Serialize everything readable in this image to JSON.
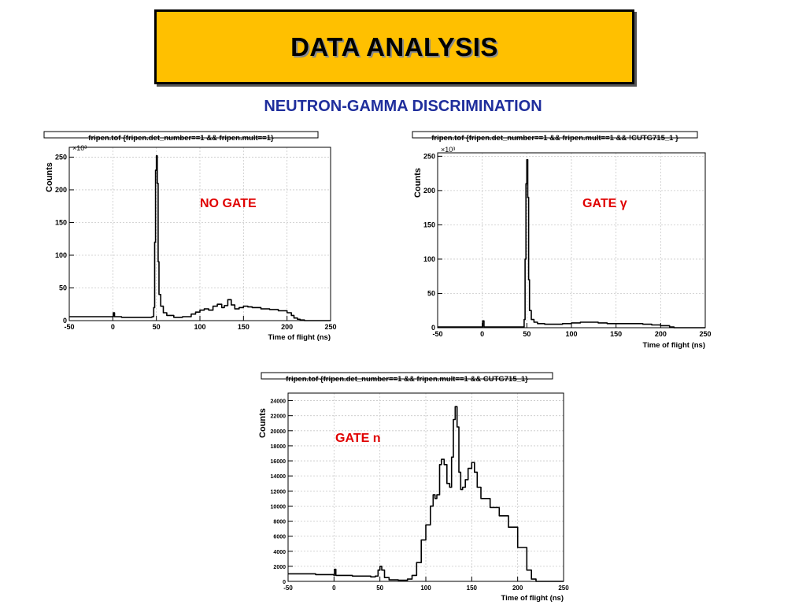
{
  "slide": {
    "title": "DATA ANALYSIS",
    "subtitle": "NEUTRON-GAMMA DISCRIMINATION",
    "colors": {
      "title_bg": "#ffc000",
      "subtitle": "#1f2e9c",
      "annotation": "#e00000",
      "trace": "#000000",
      "grid": "#c8c8c8"
    }
  },
  "chart_data": [
    {
      "type": "line",
      "title": "fripen.tof {fripen.det_number==1 && fripen.mult==1}",
      "annotation": "NO GATE",
      "xlabel": "Time of flight (ns)",
      "ylabel": "Counts",
      "yscale_label": "×10³",
      "xlim": [
        -50,
        250
      ],
      "ylim": [
        0,
        265
      ],
      "xticks": [
        -50,
        0,
        50,
        100,
        150,
        200,
        250
      ],
      "yticks": [
        0,
        50,
        100,
        150,
        200,
        250
      ],
      "grid": true,
      "series": [
        {
          "x": [
            -50,
            -10,
            0,
            0.5,
            1.5,
            2,
            10,
            30,
            45,
            47,
            48,
            49,
            50,
            51,
            52,
            53,
            55,
            58,
            62,
            70,
            80,
            90,
            95,
            100,
            105,
            110,
            115,
            120,
            125,
            128,
            132,
            136,
            140,
            145,
            150,
            155,
            160,
            170,
            180,
            190,
            200,
            205,
            208,
            212,
            215,
            220,
            230,
            250
          ],
          "y": [
            6,
            6,
            6,
            12,
            12,
            6,
            5,
            5,
            6,
            20,
            120,
            230,
            252,
            210,
            90,
            40,
            22,
            12,
            8,
            5,
            6,
            10,
            13,
            16,
            18,
            16,
            22,
            25,
            20,
            23,
            32,
            24,
            18,
            20,
            22,
            21,
            20,
            18,
            17,
            15,
            12,
            8,
            4,
            2,
            1,
            0,
            0,
            0
          ]
        }
      ]
    },
    {
      "type": "line",
      "title": "fripen.tof {fripen.det_number==1 && fripen.mult==1 && !CUTG715_1 }",
      "annotation": "GATE γ",
      "xlabel": "Time of flight (ns)",
      "ylabel": "Counts",
      "yscale_label": "×10³",
      "xlim": [
        -50,
        250
      ],
      "ylim": [
        0,
        255
      ],
      "xticks": [
        -50,
        0,
        50,
        100,
        150,
        200,
        250
      ],
      "yticks": [
        0,
        50,
        100,
        150,
        200,
        250
      ],
      "grid": true,
      "series": [
        {
          "x": [
            -50,
            -10,
            0,
            0.5,
            1.5,
            2,
            10,
            30,
            45,
            47,
            48,
            49,
            50,
            51,
            52,
            53,
            55,
            58,
            62,
            70,
            80,
            90,
            100,
            110,
            120,
            130,
            140,
            150,
            160,
            170,
            180,
            190,
            200,
            210,
            215,
            220,
            250
          ],
          "y": [
            1,
            1,
            1,
            10,
            10,
            1,
            1,
            1,
            1,
            12,
            100,
            210,
            245,
            190,
            70,
            25,
            12,
            8,
            6,
            5,
            5,
            6,
            7,
            8,
            8,
            7,
            6,
            6,
            6,
            6,
            5,
            4,
            3,
            1,
            0,
            0,
            0
          ]
        }
      ]
    },
    {
      "type": "line",
      "title": "fripen.tof {fripen.det_number==1 && fripen.mult==1 && CUTG715_1}",
      "annotation": "GATE n",
      "xlabel": "Time of flight (ns)",
      "ylabel": "Counts",
      "xlim": [
        -50,
        250
      ],
      "ylim": [
        0,
        25000
      ],
      "xticks": [
        -50,
        0,
        50,
        100,
        150,
        200,
        250
      ],
      "yticks": [
        0,
        2000,
        4000,
        6000,
        8000,
        10000,
        12000,
        14000,
        16000,
        18000,
        20000,
        22000,
        24000
      ],
      "grid": true,
      "series": [
        {
          "x": [
            -50,
            -20,
            0,
            0.5,
            1.5,
            2,
            20,
            40,
            45,
            48,
            50,
            52,
            55,
            60,
            70,
            80,
            85,
            90,
            95,
            100,
            105,
            108,
            110,
            112,
            115,
            117,
            120,
            123,
            126,
            128,
            130,
            132,
            134,
            136,
            138,
            140,
            143,
            146,
            150,
            153,
            156,
            160,
            170,
            180,
            190,
            200,
            210,
            215,
            220,
            223,
            230,
            250
          ],
          "y": [
            1000,
            900,
            800,
            1600,
            1600,
            800,
            700,
            600,
            700,
            1500,
            2000,
            1500,
            500,
            200,
            150,
            300,
            800,
            2500,
            5500,
            7500,
            10000,
            11500,
            11000,
            11500,
            15500,
            16200,
            15500,
            13000,
            12500,
            16500,
            21500,
            23200,
            20500,
            14500,
            12200,
            12500,
            13500,
            15000,
            15800,
            14500,
            12500,
            11000,
            9800,
            8700,
            7200,
            4500,
            1500,
            300,
            0,
            0,
            0,
            0
          ]
        }
      ]
    }
  ]
}
